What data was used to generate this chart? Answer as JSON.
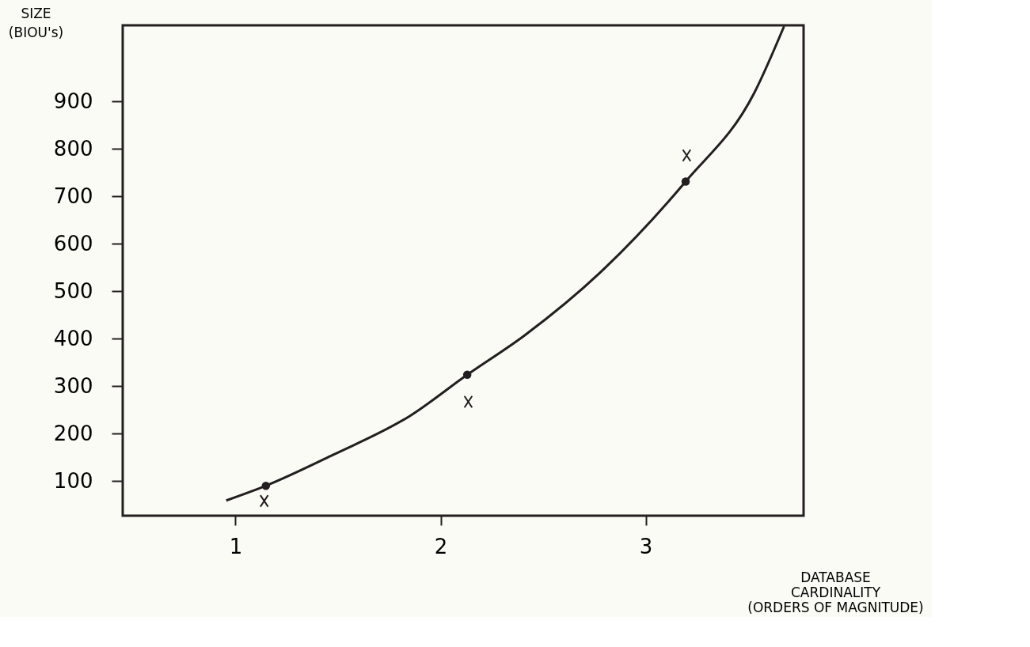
{
  "chart_data": {
    "type": "line",
    "xlabel": "DATABASE\nCARDINALITY\n(ORDERS OF MAGNITUDE)",
    "ylabel": "SIZE\n(BIOU's)",
    "xlim": [
      0.45,
      3.77
    ],
    "xticks": [
      1,
      2,
      3
    ],
    "ylim": [
      27,
      1060
    ],
    "yticks": [
      100,
      200,
      300,
      400,
      500,
      600,
      700,
      800,
      900
    ],
    "grid": false,
    "series": [
      {
        "marker": "none",
        "color": "#231f20",
        "x": [
          0.955,
          1.148,
          1.475,
          1.85,
          2.13,
          2.41,
          2.78,
          3.195,
          3.53,
          3.675
        ],
        "values": [
          59,
          90,
          155,
          237,
          324,
          407,
          540,
          731,
          918,
          1058
        ]
      },
      {
        "type": "scatter",
        "marker": "circle",
        "color": "#231f20",
        "x": [
          1.148,
          2.13,
          3.195
        ],
        "values": [
          90,
          324,
          731
        ]
      },
      {
        "type": "scatter",
        "marker": "cross",
        "color": "#231f20",
        "x": [
          1.14,
          2.135,
          3.2
        ],
        "values": [
          58,
          267,
          786
        ]
      }
    ]
  }
}
